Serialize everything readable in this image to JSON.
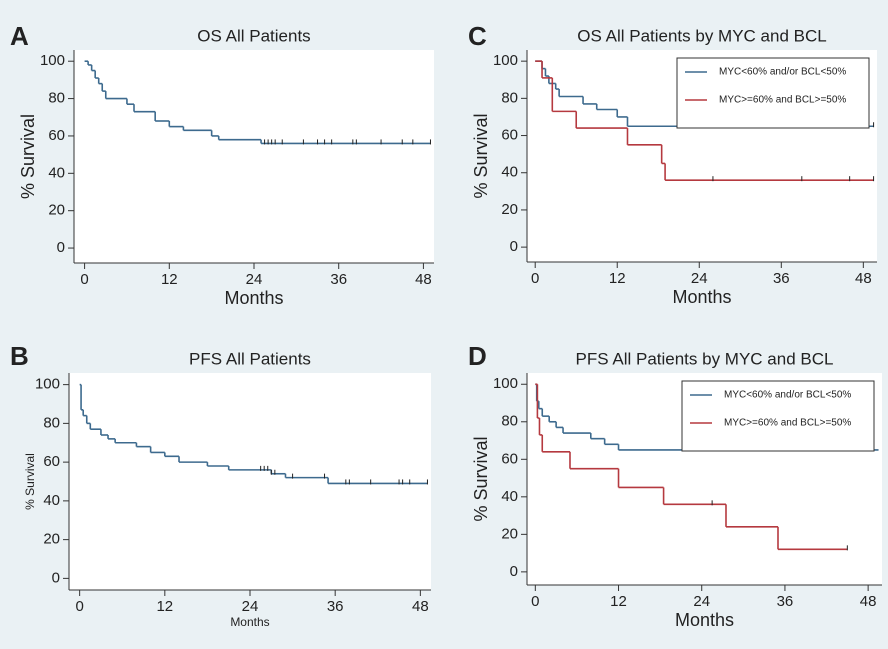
{
  "chart_data": [
    {
      "type": "line",
      "label": "A",
      "title": "OS All Patients",
      "x_label": "Months",
      "y_label": "% Survival",
      "xlim": [
        -1.5,
        49.5
      ],
      "ylim": [
        -8,
        106
      ],
      "xticks": [
        0,
        12,
        24,
        36,
        48
      ],
      "yticks": [
        0,
        20,
        40,
        60,
        80,
        100
      ],
      "series": [
        {
          "color": "#3d6a8e",
          "x": [
            0,
            0.5,
            1,
            1.5,
            2,
            2.5,
            3,
            6,
            7,
            10,
            12,
            14,
            18,
            19,
            25,
            49
          ],
          "values": [
            100,
            98,
            95,
            91,
            88,
            84,
            80,
            77,
            73,
            68,
            65,
            63,
            60,
            58,
            56,
            56
          ],
          "censored": [
            25.5,
            26,
            26.5,
            27,
            28,
            31,
            33,
            34,
            35,
            38,
            38.5,
            42,
            45,
            46.5,
            49
          ]
        }
      ]
    },
    {
      "type": "line",
      "label": "B",
      "title": "PFS All Patients",
      "x_label": "Months",
      "y_label": "% Survival",
      "xlim": [
        -1.5,
        49.5
      ],
      "ylim": [
        -6,
        106
      ],
      "xticks": [
        0,
        12,
        24,
        36,
        48
      ],
      "yticks": [
        0,
        20,
        40,
        60,
        80,
        100
      ],
      "series": [
        {
          "color": "#3d6a8e",
          "x": [
            0,
            0.2,
            0.5,
            1,
            1.5,
            3,
            4,
            5,
            8,
            10,
            12,
            14,
            18,
            21,
            27,
            29,
            35,
            49
          ],
          "values": [
            100,
            87,
            84,
            80,
            77,
            74,
            72,
            70,
            68,
            65,
            63,
            60,
            58,
            56,
            54,
            52,
            49,
            49
          ],
          "censored": [
            25.5,
            26,
            26.5,
            27,
            27.5,
            30,
            34.5,
            37.5,
            38,
            41,
            45,
            45.5,
            46.5,
            49
          ]
        }
      ]
    },
    {
      "type": "line",
      "label": "C",
      "title": "OS All Patients by MYC and BCL",
      "x_label": "Months",
      "y_label": "% Survival",
      "xlim": [
        -1.2,
        50
      ],
      "ylim": [
        -8,
        106
      ],
      "xticks": [
        0,
        12,
        24,
        36,
        48
      ],
      "yticks": [
        0,
        20,
        40,
        60,
        80,
        100
      ],
      "legend": "upper right",
      "series": [
        {
          "name": "MYC<60% and/or BCL<50%",
          "color": "#3d6a8e",
          "x": [
            0,
            1,
            1.5,
            2,
            3,
            3.5,
            7,
            9,
            12,
            13.5,
            49.5
          ],
          "values": [
            100,
            96,
            92,
            88,
            85,
            81,
            77,
            74,
            70,
            65,
            65
          ],
          "censored": [
            26,
            27,
            28,
            30,
            32,
            38,
            38.5,
            40,
            42,
            45,
            45.5,
            47,
            48.5,
            49.5
          ]
        },
        {
          "name": "MYC>=60% and BCL>=50%",
          "color": "#b5393f",
          "x": [
            0,
            1,
            2.5,
            6,
            13.5,
            18.5,
            19,
            49.5
          ],
          "values": [
            100,
            91,
            73,
            64,
            55,
            45,
            36,
            36
          ],
          "censored": [
            26,
            39,
            46,
            49.5
          ]
        }
      ]
    },
    {
      "type": "line",
      "label": "D",
      "title": "PFS All Patients by MYC and BCL",
      "x_label": "Months",
      "y_label": "% Survival",
      "xlim": [
        -1.2,
        50
      ],
      "ylim": [
        -7,
        106
      ],
      "xticks": [
        0,
        12,
        24,
        36,
        48
      ],
      "yticks": [
        0,
        20,
        40,
        60,
        80,
        100
      ],
      "legend": "upper right",
      "series": [
        {
          "name": "MYC<60% and/or BCL<50%",
          "color": "#3d6a8e",
          "x": [
            0,
            0.2,
            0.5,
            1,
            2,
            3,
            4,
            8,
            10,
            12,
            49.5
          ],
          "values": [
            100,
            91,
            87,
            83,
            80,
            77,
            74,
            71,
            68,
            65,
            65
          ],
          "censored": [
            26,
            27,
            28,
            30,
            33,
            34,
            35,
            38,
            39,
            41,
            45.5,
            48.5
          ]
        },
        {
          "name": "MYC>=60% and BCL>=50%",
          "color": "#b5393f",
          "x": [
            0,
            0.3,
            0.6,
            1,
            5,
            12,
            18.5,
            27.5,
            35,
            45
          ],
          "values": [
            100,
            82,
            73,
            64,
            55,
            45,
            36,
            24,
            12,
            12
          ],
          "censored": [
            25.5,
            45
          ]
        }
      ]
    }
  ]
}
